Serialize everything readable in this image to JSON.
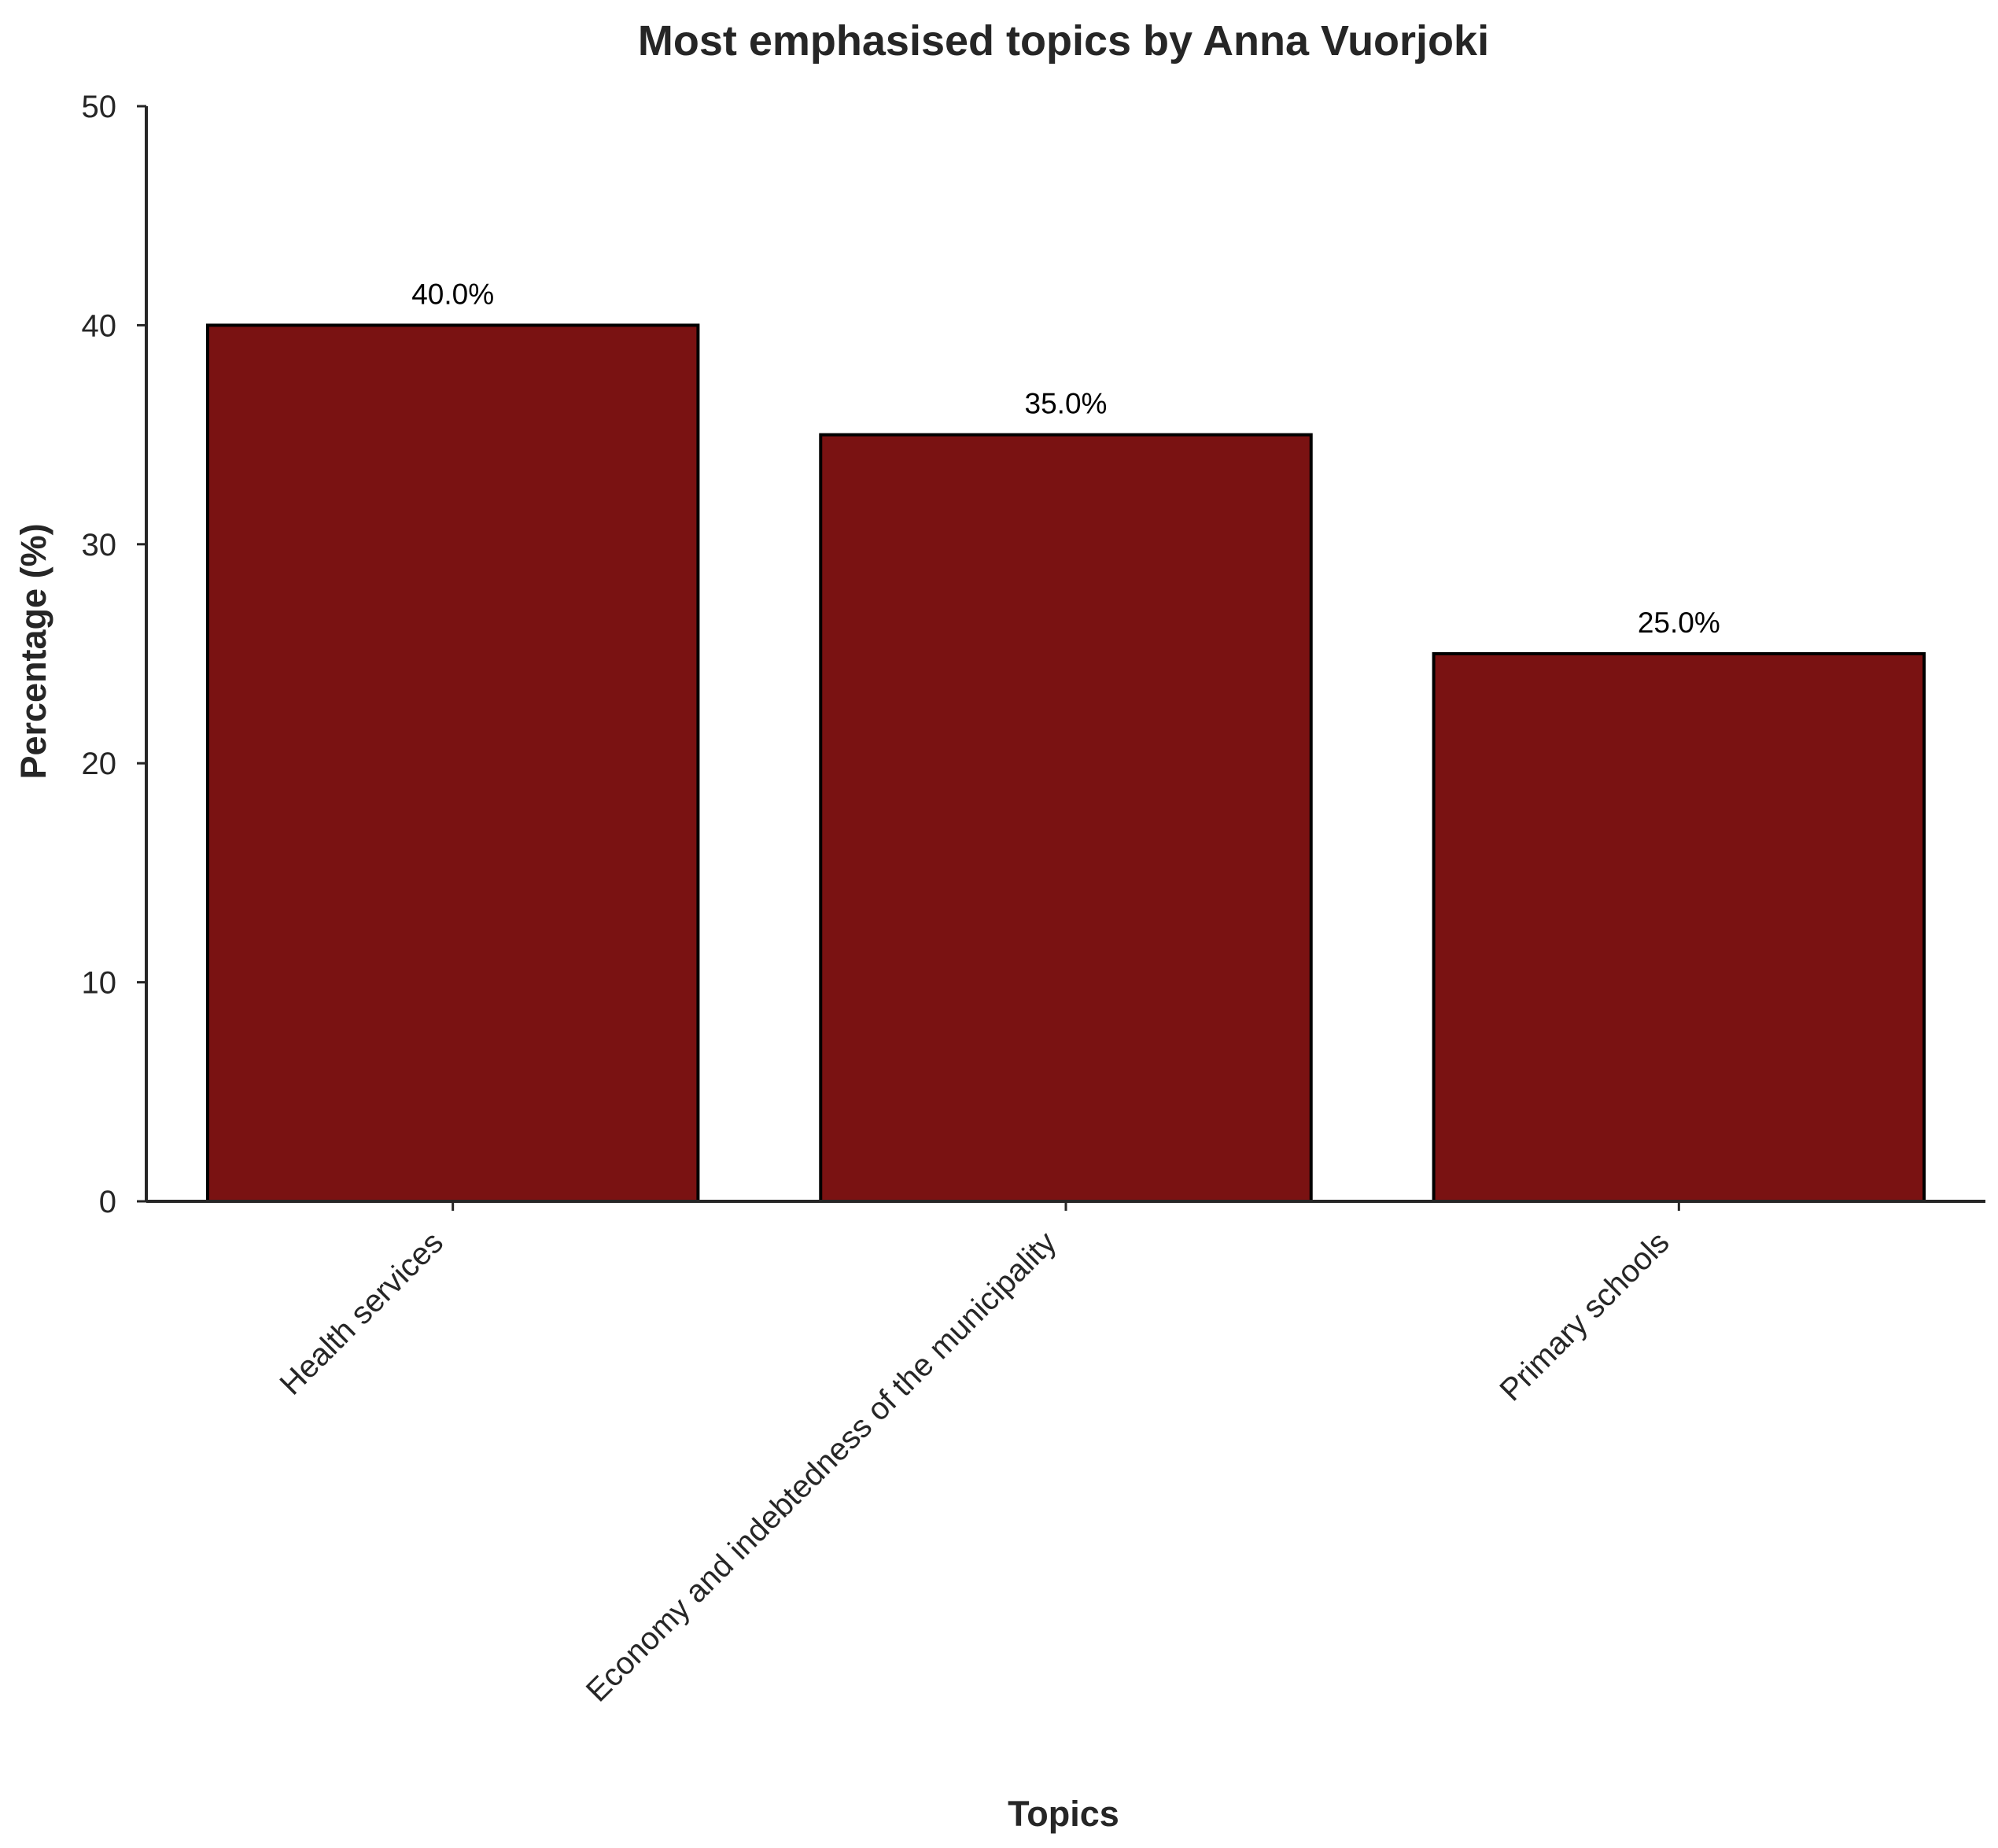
{
  "chart_data": {
    "type": "bar",
    "title": "Most emphasised topics by Anna Vuorjoki",
    "xlabel": "Topics",
    "ylabel": "Percentage (%)",
    "categories": [
      "Health services",
      "Economy and indebtedness of the municipality",
      "Primary schools"
    ],
    "values": [
      40.0,
      35.0,
      25.0
    ],
    "data_labels": [
      "40.0%",
      "35.0%",
      "25.0%"
    ],
    "ylim": [
      0,
      50
    ],
    "yticks": [
      0,
      10,
      20,
      30,
      40,
      50
    ],
    "ytick_labels": [
      "0",
      "10",
      "20",
      "30",
      "40",
      "50"
    ],
    "grid": false,
    "bar_color": "#7a1212",
    "bar_edge_color": "#000000",
    "axis_color": "#262626"
  }
}
